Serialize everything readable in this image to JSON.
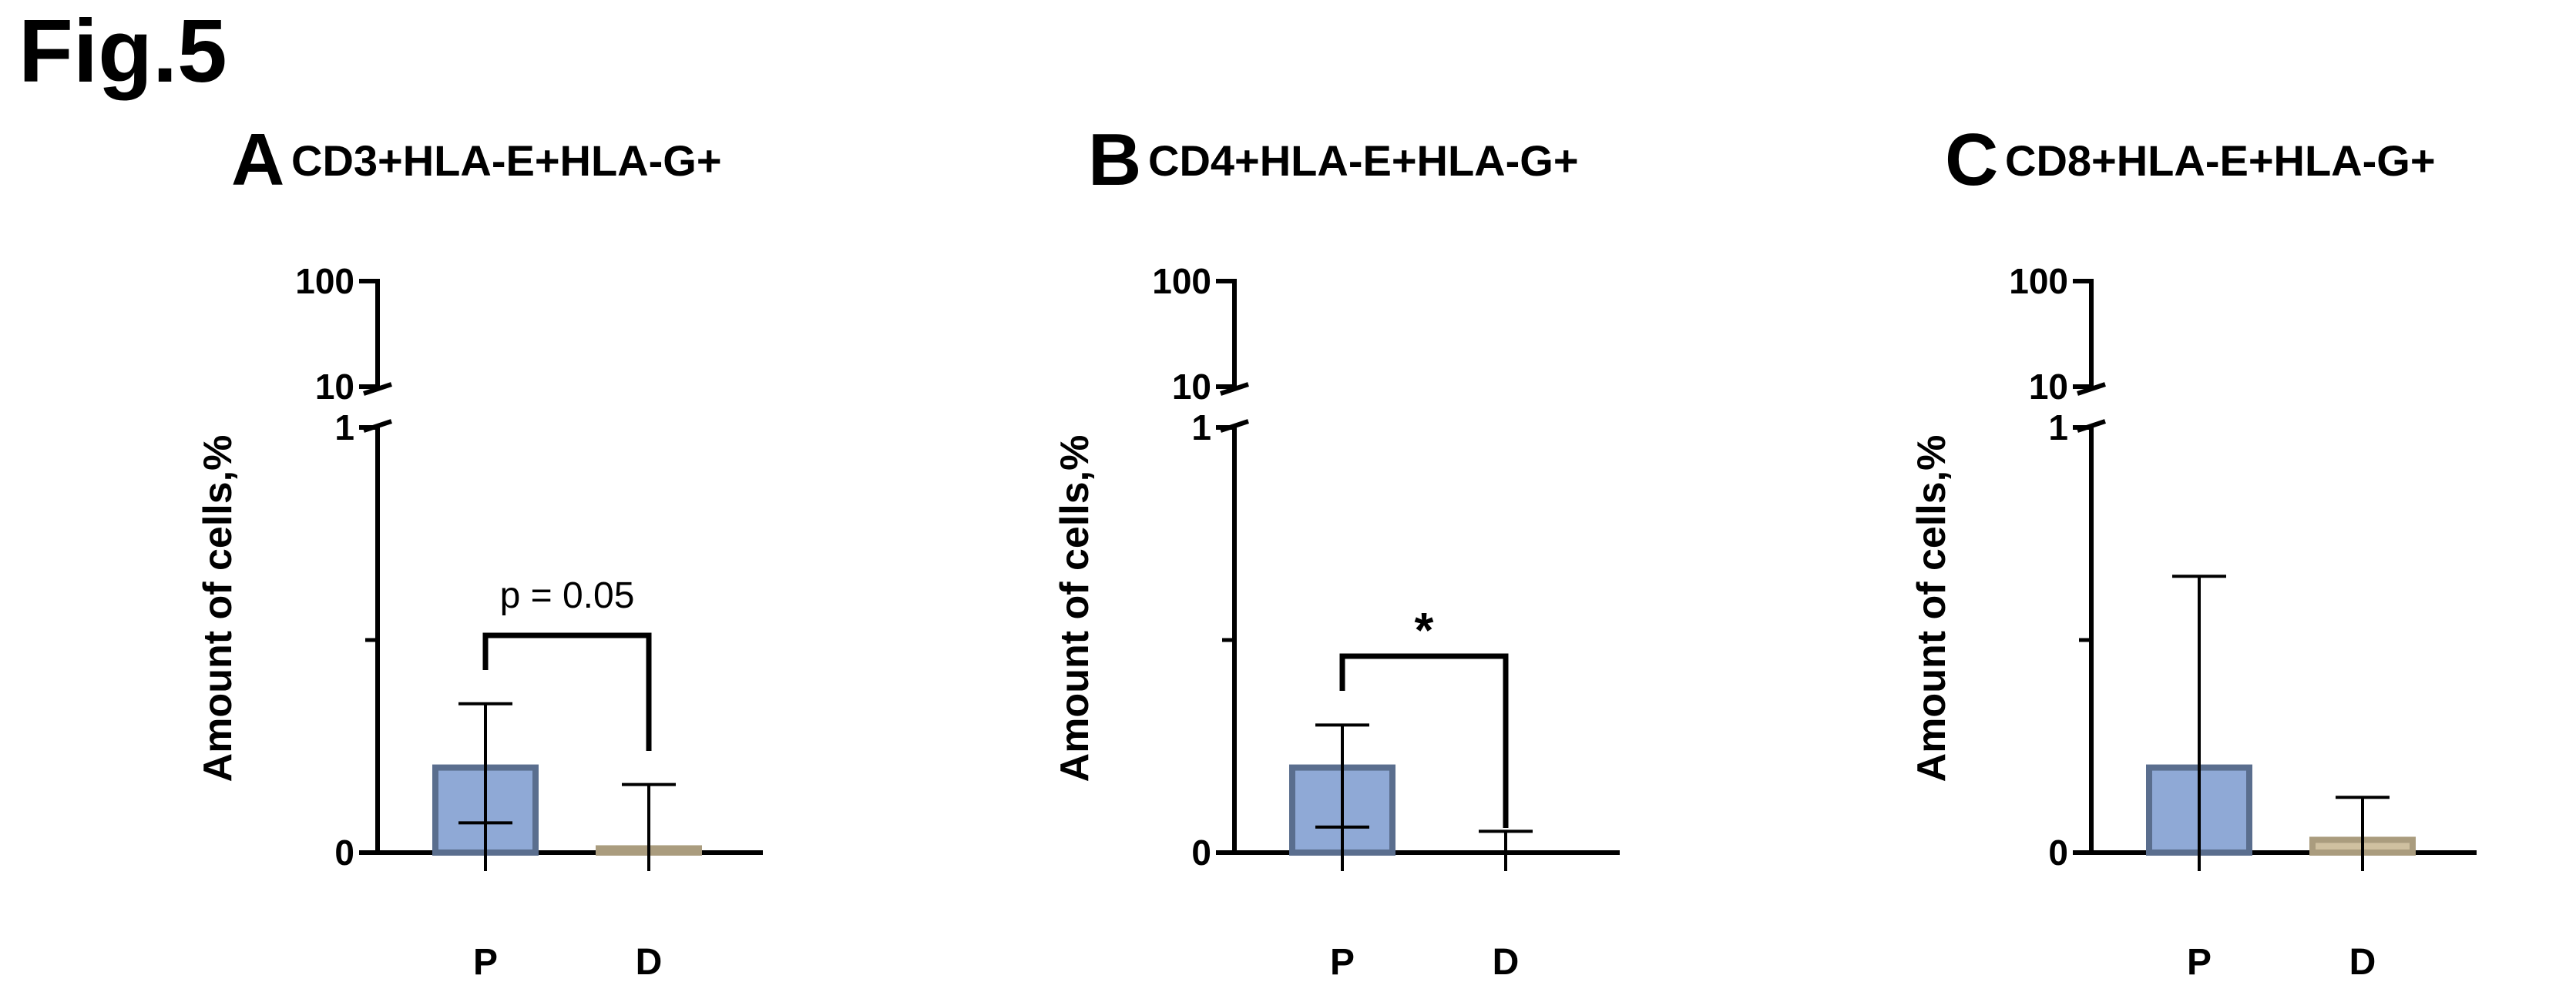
{
  "figure_label": "Fig.5",
  "chart_data": [
    {
      "panel": "A",
      "type": "bar",
      "title": "CD3+HLA-E+HLA-G+",
      "ylabel": "Amount of cells,%",
      "categories": [
        "P",
        "D"
      ],
      "values": [
        0.2,
        0.01
      ],
      "error_upper": [
        0.35,
        0.16
      ],
      "error_lower": [
        0.07,
        0.0
      ],
      "bar_colors": [
        "#8fa9d6",
        "#cfc0a0"
      ],
      "bar_edge_colors": [
        "#5a6e8e",
        "#aa9c7e"
      ],
      "y_axis": {
        "type": "broken",
        "segments": [
          {
            "range": [
              0,
              1
            ],
            "ticks": [
              "0",
              "1"
            ]
          },
          {
            "range": [
              10,
              100
            ],
            "ticks": [
              "10",
              "100"
            ]
          }
        ]
      },
      "annotation": {
        "text": "p = 0.05",
        "between": [
          "P",
          "D"
        ]
      }
    },
    {
      "panel": "B",
      "type": "bar",
      "title": "CD4+HLA-E+HLA-G+",
      "ylabel": "Amount of cells,%",
      "categories": [
        "P",
        "D"
      ],
      "values": [
        0.2,
        0.0
      ],
      "error_upper": [
        0.3,
        0.05
      ],
      "error_lower": [
        0.06,
        0.0
      ],
      "bar_colors": [
        "#8fa9d6",
        "#cfc0a0"
      ],
      "bar_edge_colors": [
        "#5a6e8e",
        "#aa9c7e"
      ],
      "y_axis": {
        "type": "broken",
        "segments": [
          {
            "range": [
              0,
              1
            ],
            "ticks": [
              "0",
              "1"
            ]
          },
          {
            "range": [
              10,
              100
            ],
            "ticks": [
              "10",
              "100"
            ]
          }
        ]
      },
      "annotation": {
        "text": "*",
        "between": [
          "P",
          "D"
        ]
      }
    },
    {
      "panel": "C",
      "type": "bar",
      "title": "CD8+HLA-E+HLA-G+",
      "ylabel": "Amount of cells,%",
      "categories": [
        "P",
        "D"
      ],
      "values": [
        0.2,
        0.03
      ],
      "error_upper": [
        0.65,
        0.13
      ],
      "error_lower": [
        0.0,
        0.0
      ],
      "bar_colors": [
        "#8fa9d6",
        "#cfc0a0"
      ],
      "bar_edge_colors": [
        "#5a6e8e",
        "#aa9c7e"
      ],
      "y_axis": {
        "type": "broken",
        "segments": [
          {
            "range": [
              0,
              1
            ],
            "ticks": [
              "0",
              "1"
            ]
          },
          {
            "range": [
              10,
              100
            ],
            "ticks": [
              "10",
              "100"
            ]
          }
        ]
      },
      "annotation": null
    }
  ]
}
